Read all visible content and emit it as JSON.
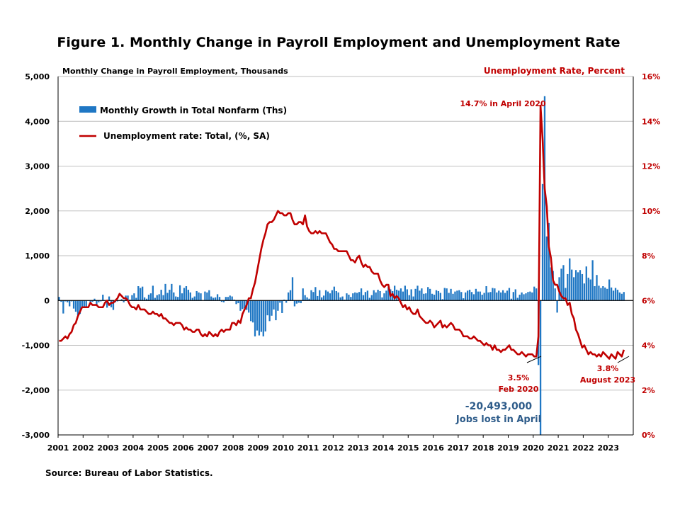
{
  "chart_data": {
    "type": "bar+line",
    "title": "Figure 1. Monthly Change in Payroll Employment and Unemployment Rate",
    "left_axis_label": "Monthly Change in Payroll Employment, Thousands",
    "right_axis_label": "Unemployment Rate, Percent",
    "left_ylim": [
      -3000,
      5000
    ],
    "left_ticks": [
      "-3,000",
      "-2,000",
      "-1,000",
      "0",
      "1,000",
      "2,000",
      "3,000",
      "4,000",
      "5,000"
    ],
    "right_ylim": [
      0,
      16
    ],
    "right_ticks": [
      "0%",
      "2%",
      "4%",
      "6%",
      "8%",
      "10%",
      "12%",
      "14%",
      "16%"
    ],
    "x_ticks": [
      "2001",
      "2002",
      "2003",
      "2004",
      "2005",
      "2006",
      "2007",
      "2008",
      "2009",
      "2010",
      "2011",
      "2012",
      "2013",
      "2014",
      "2015",
      "2016",
      "2017",
      "2018",
      "2019",
      "2020",
      "2021",
      "2022",
      "2023"
    ],
    "grid": "horizontal",
    "legend_position": "top-left",
    "series": [
      {
        "name": "Monthly Growth in Total Nonfarm (Ths)",
        "kind": "bar",
        "axis": "left",
        "color": "#1f77c4",
        "start": "2001-01",
        "values": [
          80,
          -30,
          -290,
          -20,
          -40,
          -130,
          -20,
          -180,
          -250,
          -330,
          -300,
          -170,
          -130,
          -140,
          0,
          -90,
          -30,
          40,
          -110,
          -40,
          -20,
          130,
          10,
          -160,
          90,
          -150,
          -210,
          -40,
          -20,
          10,
          30,
          -40,
          110,
          110,
          20,
          120,
          160,
          60,
          320,
          280,
          310,
          70,
          40,
          130,
          160,
          330,
          60,
          120,
          140,
          240,
          120,
          370,
          170,
          240,
          370,
          180,
          90,
          80,
          340,
          160,
          280,
          320,
          240,
          180,
          60,
          90,
          210,
          180,
          160,
          10,
          200,
          180,
          230,
          90,
          60,
          70,
          140,
          80,
          -30,
          -40,
          80,
          80,
          110,
          90,
          20,
          -80,
          -60,
          -230,
          -190,
          -170,
          -210,
          -270,
          -460,
          -490,
          -800,
          -670,
          -780,
          -700,
          -800,
          -690,
          -330,
          -460,
          -340,
          -200,
          -440,
          -230,
          -50,
          -280,
          20,
          -50,
          180,
          230,
          520,
          -130,
          -70,
          -50,
          -60,
          270,
          120,
          70,
          40,
          230,
          190,
          300,
          100,
          230,
          70,
          110,
          230,
          200,
          160,
          230,
          310,
          210,
          180,
          70,
          90,
          20,
          160,
          130,
          80,
          160,
          180,
          170,
          190,
          270,
          120,
          190,
          220,
          60,
          120,
          230,
          180,
          240,
          210,
          70,
          160,
          220,
          300,
          250,
          210,
          330,
          240,
          220,
          270,
          200,
          330,
          250,
          120,
          250,
          90,
          260,
          330,
          220,
          270,
          150,
          160,
          300,
          260,
          150,
          130,
          230,
          210,
          170,
          30,
          280,
          270,
          170,
          260,
          150,
          200,
          220,
          230,
          190,
          50,
          180,
          220,
          240,
          190,
          140,
          260,
          200,
          200,
          130,
          170,
          320,
          180,
          190,
          280,
          270,
          180,
          220,
          180,
          230,
          170,
          220,
          280,
          40,
          190,
          250,
          60,
          130,
          180,
          140,
          160,
          190,
          200,
          180,
          310,
          270,
          -1440,
          -20493,
          2600,
          4560,
          1430,
          1730,
          740,
          660,
          270,
          -270,
          520,
          710,
          790,
          280,
          590,
          940,
          690,
          520,
          680,
          630,
          680,
          590,
          380,
          760,
          510,
          470,
          900,
          320,
          570,
          330,
          280,
          320,
          290,
          260,
          470,
          290,
          220,
          280,
          240,
          180,
          150,
          190
        ]
      },
      {
        "name": "Unemployment rate: Total, (%, SA)",
        "kind": "line",
        "axis": "right",
        "color": "#c00000",
        "start": "2001-01",
        "values": [
          4.2,
          4.2,
          4.3,
          4.4,
          4.3,
          4.5,
          4.6,
          4.9,
          5.0,
          5.3,
          5.5,
          5.7,
          5.7,
          5.7,
          5.7,
          5.9,
          5.8,
          5.8,
          5.8,
          5.7,
          5.7,
          5.7,
          5.9,
          6.0,
          5.8,
          5.9,
          5.9,
          6.0,
          6.1,
          6.3,
          6.2,
          6.1,
          6.1,
          6.0,
          5.8,
          5.7,
          5.7,
          5.6,
          5.8,
          5.6,
          5.6,
          5.6,
          5.5,
          5.4,
          5.4,
          5.5,
          5.4,
          5.4,
          5.3,
          5.4,
          5.2,
          5.2,
          5.1,
          5.0,
          5.0,
          4.9,
          5.0,
          5.0,
          5.0,
          4.9,
          4.7,
          4.8,
          4.7,
          4.7,
          4.6,
          4.6,
          4.7,
          4.7,
          4.5,
          4.4,
          4.5,
          4.4,
          4.6,
          4.5,
          4.4,
          4.5,
          4.4,
          4.6,
          4.7,
          4.6,
          4.7,
          4.7,
          4.7,
          5.0,
          5.0,
          4.9,
          5.1,
          5.0,
          5.4,
          5.6,
          5.8,
          6.1,
          6.1,
          6.5,
          6.8,
          7.3,
          7.8,
          8.3,
          8.7,
          9.0,
          9.4,
          9.5,
          9.5,
          9.6,
          9.8,
          10.0,
          9.9,
          9.9,
          9.8,
          9.8,
          9.9,
          9.9,
          9.6,
          9.4,
          9.4,
          9.5,
          9.5,
          9.4,
          9.8,
          9.3,
          9.1,
          9.0,
          9.0,
          9.1,
          9.0,
          9.1,
          9.0,
          9.0,
          9.0,
          8.8,
          8.6,
          8.5,
          8.3,
          8.3,
          8.2,
          8.2,
          8.2,
          8.2,
          8.2,
          8.0,
          7.8,
          7.8,
          7.7,
          7.9,
          8.0,
          7.7,
          7.5,
          7.6,
          7.5,
          7.5,
          7.3,
          7.2,
          7.2,
          7.2,
          6.9,
          6.7,
          6.6,
          6.7,
          6.7,
          6.2,
          6.3,
          6.1,
          6.2,
          6.1,
          5.9,
          5.7,
          5.8,
          5.6,
          5.7,
          5.5,
          5.4,
          5.4,
          5.6,
          5.3,
          5.2,
          5.1,
          5.0,
          5.0,
          5.1,
          5.0,
          4.8,
          4.9,
          5.0,
          5.1,
          4.8,
          4.9,
          4.8,
          4.9,
          5.0,
          4.9,
          4.7,
          4.7,
          4.7,
          4.6,
          4.4,
          4.4,
          4.4,
          4.3,
          4.3,
          4.4,
          4.3,
          4.2,
          4.2,
          4.1,
          4.0,
          4.1,
          4.0,
          4.0,
          3.8,
          4.0,
          3.8,
          3.8,
          3.7,
          3.8,
          3.8,
          3.9,
          4.0,
          3.8,
          3.8,
          3.7,
          3.6,
          3.6,
          3.7,
          3.6,
          3.5,
          3.6,
          3.6,
          3.6,
          3.5,
          3.5,
          4.4,
          14.7,
          13.2,
          11.0,
          10.2,
          8.4,
          7.9,
          6.9,
          6.7,
          6.7,
          6.4,
          6.2,
          6.1,
          6.1,
          5.8,
          5.9,
          5.4,
          5.2,
          4.7,
          4.5,
          4.2,
          3.9,
          4.0,
          3.8,
          3.6,
          3.7,
          3.6,
          3.6,
          3.5,
          3.6,
          3.5,
          3.7,
          3.6,
          3.5,
          3.4,
          3.6,
          3.5,
          3.4,
          3.7,
          3.6,
          3.5,
          3.8
        ]
      }
    ],
    "annotations": [
      {
        "text": "14.7% in April 2020",
        "color": "#c00000"
      },
      {
        "text": "3.5%",
        "color": "#c00000"
      },
      {
        "text": "Feb 2020",
        "color": "#c00000"
      },
      {
        "text": "-20,493,000",
        "color": "#2e5c8a"
      },
      {
        "text": "Jobs lost in April",
        "color": "#2e5c8a"
      },
      {
        "text": "3.8%",
        "color": "#c00000"
      },
      {
        "text": "August 2023",
        "color": "#c00000"
      }
    ],
    "source": "Source: Bureau of Labor Statistics."
  }
}
